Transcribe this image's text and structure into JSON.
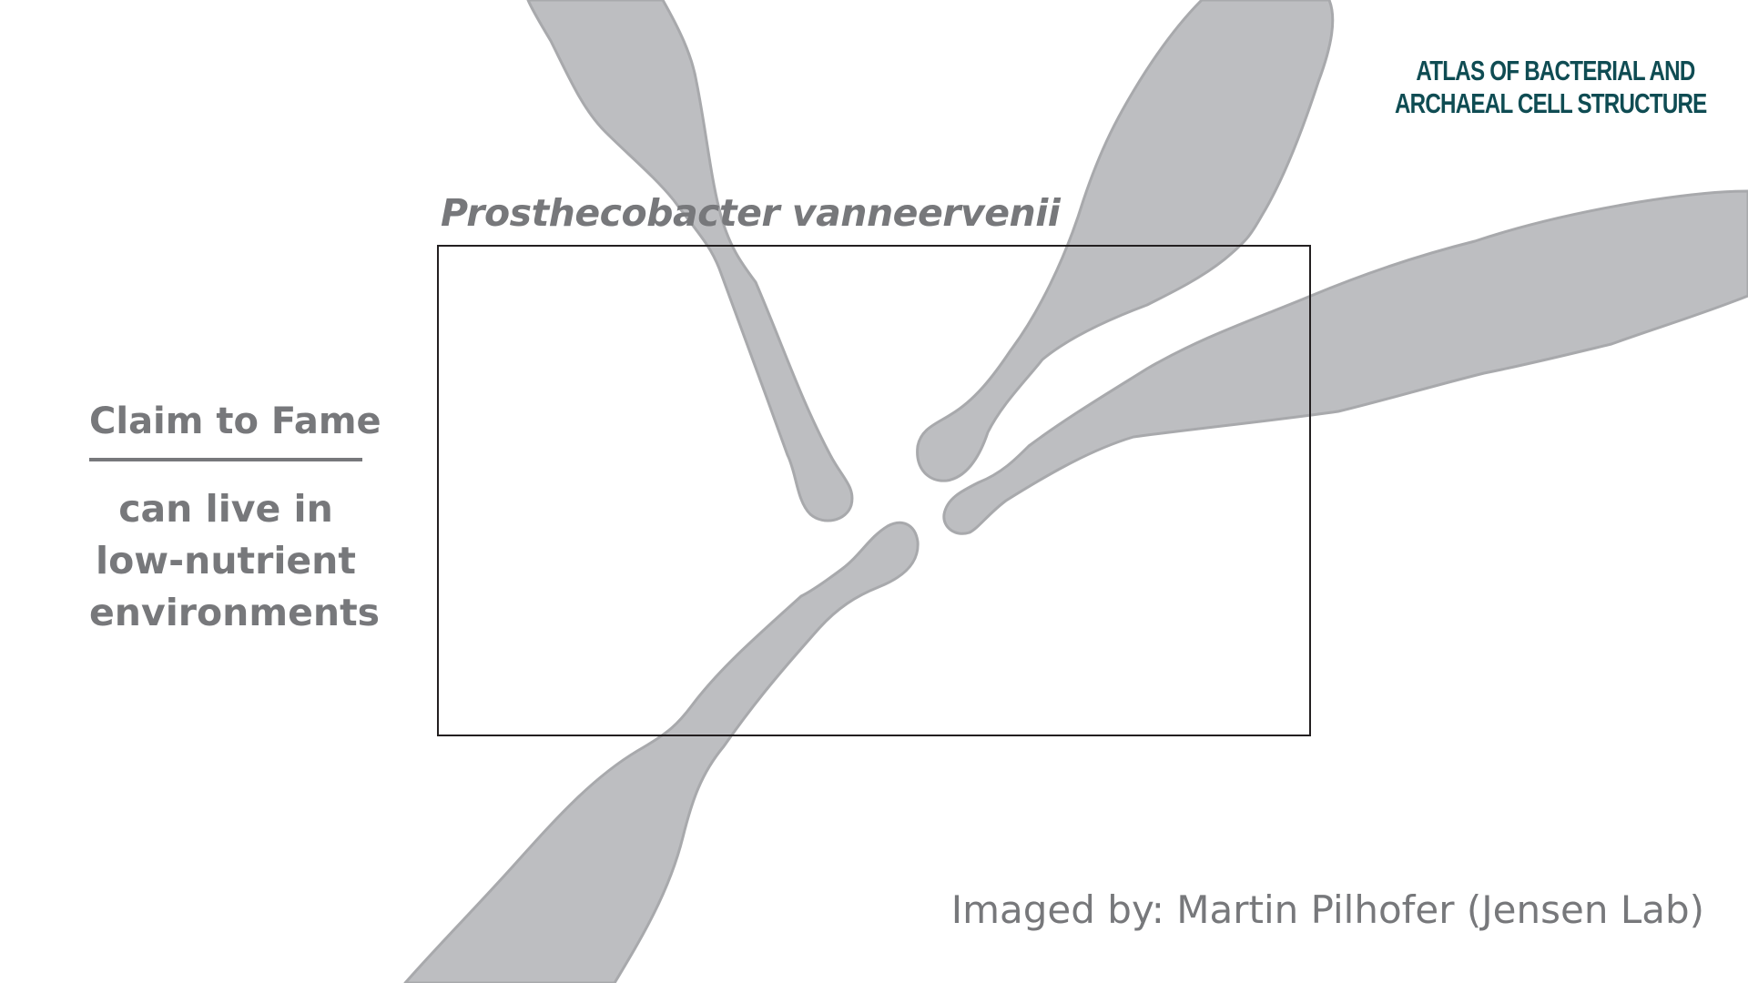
{
  "logo": {
    "line1": "Atlas of Bacterial and",
    "line2": "Archaeal Cell Structure",
    "color": "#0f4c53"
  },
  "species_title": "Prosthecobacter vanneervenii",
  "claim": {
    "heading": "Claim to Fame",
    "text": "can live in low-nutrient environments"
  },
  "credit": "Imaged by: Martin Pilhofer (Jensen Lab)",
  "colors": {
    "text_gray": "#77787b",
    "cell_fill": "#bdbec1",
    "cell_stroke": "#a8a9ac",
    "frame": "#231f20"
  }
}
